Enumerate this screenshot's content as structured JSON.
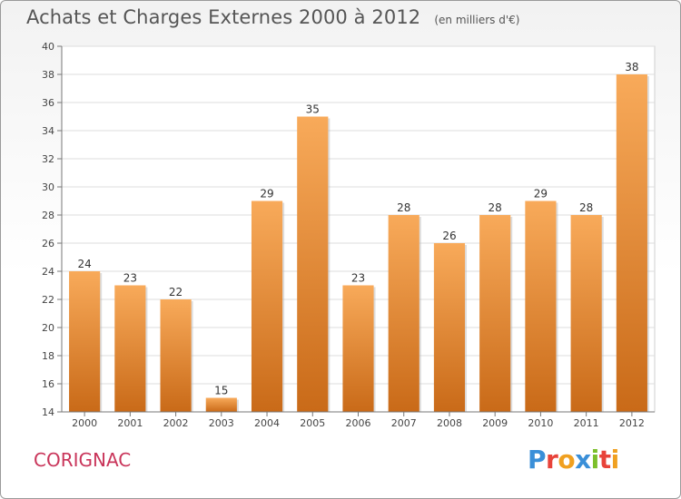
{
  "header": {
    "title": "Achats et Charges Externes 2000 à 2012",
    "subtitle": "(en milliers d'€)"
  },
  "footer": {
    "commune": "CORIGNAC",
    "logo_text": "Proxiti",
    "logo_colors": [
      "#3a8fd8",
      "#e8433a",
      "#f0a020",
      "#3a8fd8",
      "#7bbf2a",
      "#e8433a",
      "#f0a020"
    ]
  },
  "colors": {
    "bar_light": "#f8aa5a",
    "bar_dark": "#c96a18",
    "commune": "#c9355a"
  },
  "chart_data": {
    "type": "bar",
    "title": "Achats et Charges Externes 2000 à 2012",
    "subtitle": "(en milliers d'€)",
    "categories": [
      "2000",
      "2001",
      "2002",
      "2003",
      "2004",
      "2005",
      "2006",
      "2007",
      "2008",
      "2009",
      "2010",
      "2011",
      "2012"
    ],
    "values": [
      24,
      23,
      22,
      15,
      29,
      35,
      23,
      28,
      26,
      28,
      29,
      28,
      38
    ],
    "ylim": [
      14,
      40
    ],
    "yticks": [
      14,
      16,
      18,
      20,
      22,
      24,
      26,
      28,
      30,
      32,
      34,
      36,
      38,
      40
    ],
    "grid": true,
    "xlabel": "",
    "ylabel": ""
  }
}
